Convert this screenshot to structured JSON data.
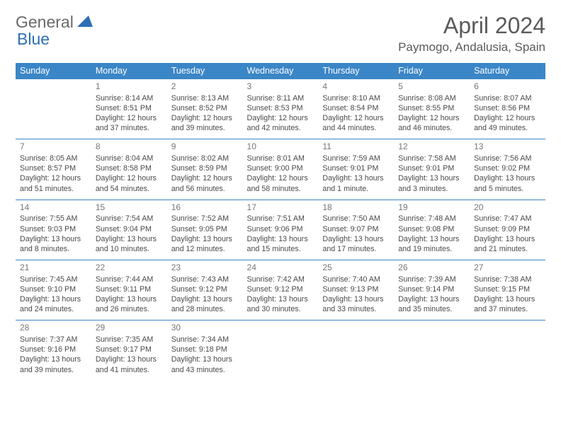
{
  "logo": {
    "part1": "General",
    "part2": "Blue"
  },
  "title": "April 2024",
  "location": "Paymogo, Andalusia, Spain",
  "colors": {
    "header_bg": "#3b86c7",
    "header_text": "#ffffff",
    "rule": "#3b86c7",
    "text": "#4a4a4a",
    "logo_blue": "#2d6fb5",
    "logo_gray": "#6a6a6a"
  },
  "day_headers": [
    "Sunday",
    "Monday",
    "Tuesday",
    "Wednesday",
    "Thursday",
    "Friday",
    "Saturday"
  ],
  "weeks": [
    [
      null,
      {
        "n": "1",
        "sr": "8:14 AM",
        "ss": "8:51 PM",
        "dl": "12 hours and 37 minutes."
      },
      {
        "n": "2",
        "sr": "8:13 AM",
        "ss": "8:52 PM",
        "dl": "12 hours and 39 minutes."
      },
      {
        "n": "3",
        "sr": "8:11 AM",
        "ss": "8:53 PM",
        "dl": "12 hours and 42 minutes."
      },
      {
        "n": "4",
        "sr": "8:10 AM",
        "ss": "8:54 PM",
        "dl": "12 hours and 44 minutes."
      },
      {
        "n": "5",
        "sr": "8:08 AM",
        "ss": "8:55 PM",
        "dl": "12 hours and 46 minutes."
      },
      {
        "n": "6",
        "sr": "8:07 AM",
        "ss": "8:56 PM",
        "dl": "12 hours and 49 minutes."
      }
    ],
    [
      {
        "n": "7",
        "sr": "8:05 AM",
        "ss": "8:57 PM",
        "dl": "12 hours and 51 minutes."
      },
      {
        "n": "8",
        "sr": "8:04 AM",
        "ss": "8:58 PM",
        "dl": "12 hours and 54 minutes."
      },
      {
        "n": "9",
        "sr": "8:02 AM",
        "ss": "8:59 PM",
        "dl": "12 hours and 56 minutes."
      },
      {
        "n": "10",
        "sr": "8:01 AM",
        "ss": "9:00 PM",
        "dl": "12 hours and 58 minutes."
      },
      {
        "n": "11",
        "sr": "7:59 AM",
        "ss": "9:01 PM",
        "dl": "13 hours and 1 minute."
      },
      {
        "n": "12",
        "sr": "7:58 AM",
        "ss": "9:01 PM",
        "dl": "13 hours and 3 minutes."
      },
      {
        "n": "13",
        "sr": "7:56 AM",
        "ss": "9:02 PM",
        "dl": "13 hours and 5 minutes."
      }
    ],
    [
      {
        "n": "14",
        "sr": "7:55 AM",
        "ss": "9:03 PM",
        "dl": "13 hours and 8 minutes."
      },
      {
        "n": "15",
        "sr": "7:54 AM",
        "ss": "9:04 PM",
        "dl": "13 hours and 10 minutes."
      },
      {
        "n": "16",
        "sr": "7:52 AM",
        "ss": "9:05 PM",
        "dl": "13 hours and 12 minutes."
      },
      {
        "n": "17",
        "sr": "7:51 AM",
        "ss": "9:06 PM",
        "dl": "13 hours and 15 minutes."
      },
      {
        "n": "18",
        "sr": "7:50 AM",
        "ss": "9:07 PM",
        "dl": "13 hours and 17 minutes."
      },
      {
        "n": "19",
        "sr": "7:48 AM",
        "ss": "9:08 PM",
        "dl": "13 hours and 19 minutes."
      },
      {
        "n": "20",
        "sr": "7:47 AM",
        "ss": "9:09 PM",
        "dl": "13 hours and 21 minutes."
      }
    ],
    [
      {
        "n": "21",
        "sr": "7:45 AM",
        "ss": "9:10 PM",
        "dl": "13 hours and 24 minutes."
      },
      {
        "n": "22",
        "sr": "7:44 AM",
        "ss": "9:11 PM",
        "dl": "13 hours and 26 minutes."
      },
      {
        "n": "23",
        "sr": "7:43 AM",
        "ss": "9:12 PM",
        "dl": "13 hours and 28 minutes."
      },
      {
        "n": "24",
        "sr": "7:42 AM",
        "ss": "9:12 PM",
        "dl": "13 hours and 30 minutes."
      },
      {
        "n": "25",
        "sr": "7:40 AM",
        "ss": "9:13 PM",
        "dl": "13 hours and 33 minutes."
      },
      {
        "n": "26",
        "sr": "7:39 AM",
        "ss": "9:14 PM",
        "dl": "13 hours and 35 minutes."
      },
      {
        "n": "27",
        "sr": "7:38 AM",
        "ss": "9:15 PM",
        "dl": "13 hours and 37 minutes."
      }
    ],
    [
      {
        "n": "28",
        "sr": "7:37 AM",
        "ss": "9:16 PM",
        "dl": "13 hours and 39 minutes."
      },
      {
        "n": "29",
        "sr": "7:35 AM",
        "ss": "9:17 PM",
        "dl": "13 hours and 41 minutes."
      },
      {
        "n": "30",
        "sr": "7:34 AM",
        "ss": "9:18 PM",
        "dl": "13 hours and 43 minutes."
      },
      null,
      null,
      null,
      null
    ]
  ],
  "labels": {
    "sunrise": "Sunrise:",
    "sunset": "Sunset:",
    "daylight": "Daylight:"
  }
}
